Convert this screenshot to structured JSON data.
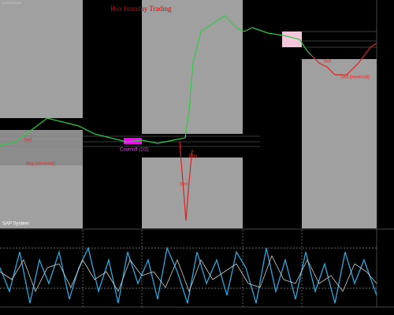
{
  "header": {
    "symbol": "EURUSD,M5"
  },
  "title": "Box Intraday Trading",
  "signals": [
    {
      "label": "Sell"
    },
    {
      "label": "Buy (reversal)"
    },
    {
      "label": "Countoff (1/2)"
    },
    {
      "label": "Buy"
    },
    {
      "label": "Sell"
    },
    {
      "label": "Sell"
    },
    {
      "label": "Sell (reversal)"
    }
  ],
  "indicator": {
    "name": "SAP System"
  }
}
